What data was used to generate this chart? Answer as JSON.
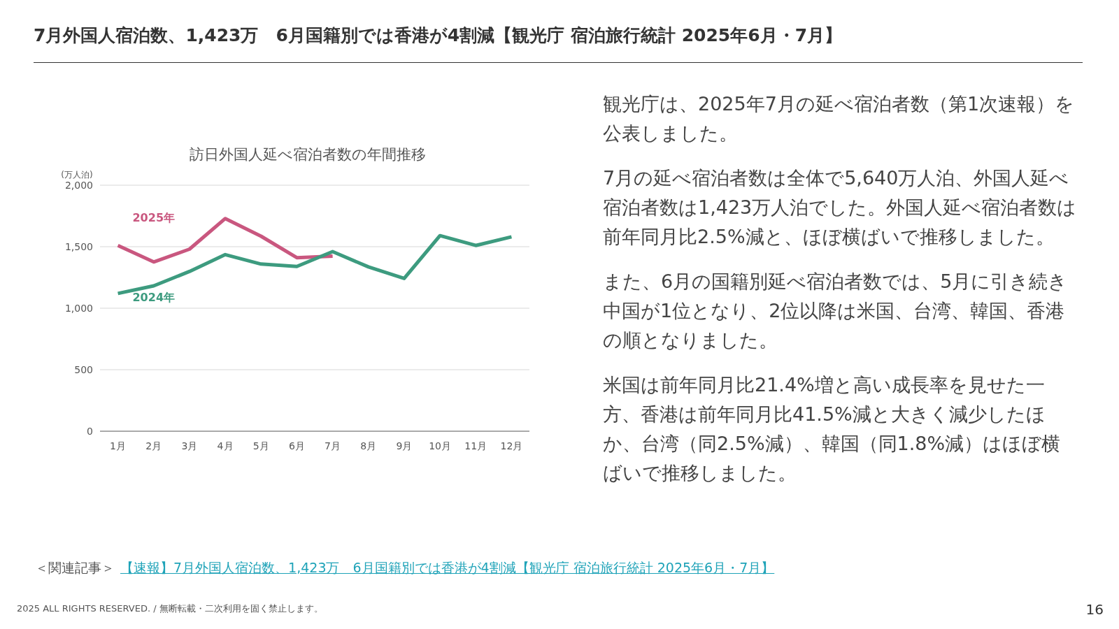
{
  "chart_data": {
    "type": "line",
    "title": "訪日外国人延べ宿泊者数の年間推移",
    "ylabel": "(万人泊)",
    "categories": [
      "1月",
      "2月",
      "3月",
      "4月",
      "5月",
      "6月",
      "7月",
      "8月",
      "9月",
      "10月",
      "11月",
      "12月"
    ],
    "series": [
      {
        "name": "2025年",
        "color": "#c9577f",
        "values": [
          1510,
          1376,
          1480,
          1729,
          1585,
          1411,
          1423,
          null,
          null,
          null,
          null,
          null
        ]
      },
      {
        "name": "2024年",
        "color": "#3d9b7f",
        "values": [
          1120,
          1182,
          1299,
          1436,
          1359,
          1339,
          1460,
          1336,
          1242,
          1590,
          1510,
          1580
        ]
      }
    ],
    "ylim": [
      0,
      2000
    ],
    "yticks": [
      {
        "value": 0,
        "label": "0"
      },
      {
        "value": 500,
        "label": "500"
      },
      {
        "value": 1000,
        "label": "1,000"
      },
      {
        "value": 1500,
        "label": "1,500"
      },
      {
        "value": 2000,
        "label": "2,000"
      }
    ],
    "grid": "y",
    "legend": false,
    "marker": "none",
    "line_style": "solid",
    "annotations": [
      "7月外国人宿泊数、1,423万　6月国籍別では香港が4割減【観光庁 宿泊旅行統計 2025年6月・7月】",
      "観光庁は、2025年7月の延べ宿泊者数（第1次速報）を公表しました。",
      "7月の延べ宿泊者数は全体で5,640万人泊、外国人延べ宿泊者数は1,423万人泊でした。外国人延べ宿泊者数は前年同月比2.5%減と、ほぼ横ばいで推移しました。",
      "また、6月の国籍別延べ宿泊者数では、5月に引き続き中国が1位となり、2位以降は米国、台湾、韓国、香港の順となりました。",
      "米国は前年同月比21.4%増と高い成長率を見せた一方、香港は前年同月比41.5%減と大きく減少したほか、台湾（同2.5%減）、韓国（同1.8%減）はほぼ横ばいで推移しました。",
      "＜関連記事＞",
      "【速報】7月外国人宿泊数、1,423万　6月国籍別では香港が4割減【観光庁 宿泊旅行統計 2025年6月・7月】",
      "2025 ALL RIGHTS RESERVED. / 無断転載・二次利用を固く禁止します。",
      "16"
    ]
  }
}
